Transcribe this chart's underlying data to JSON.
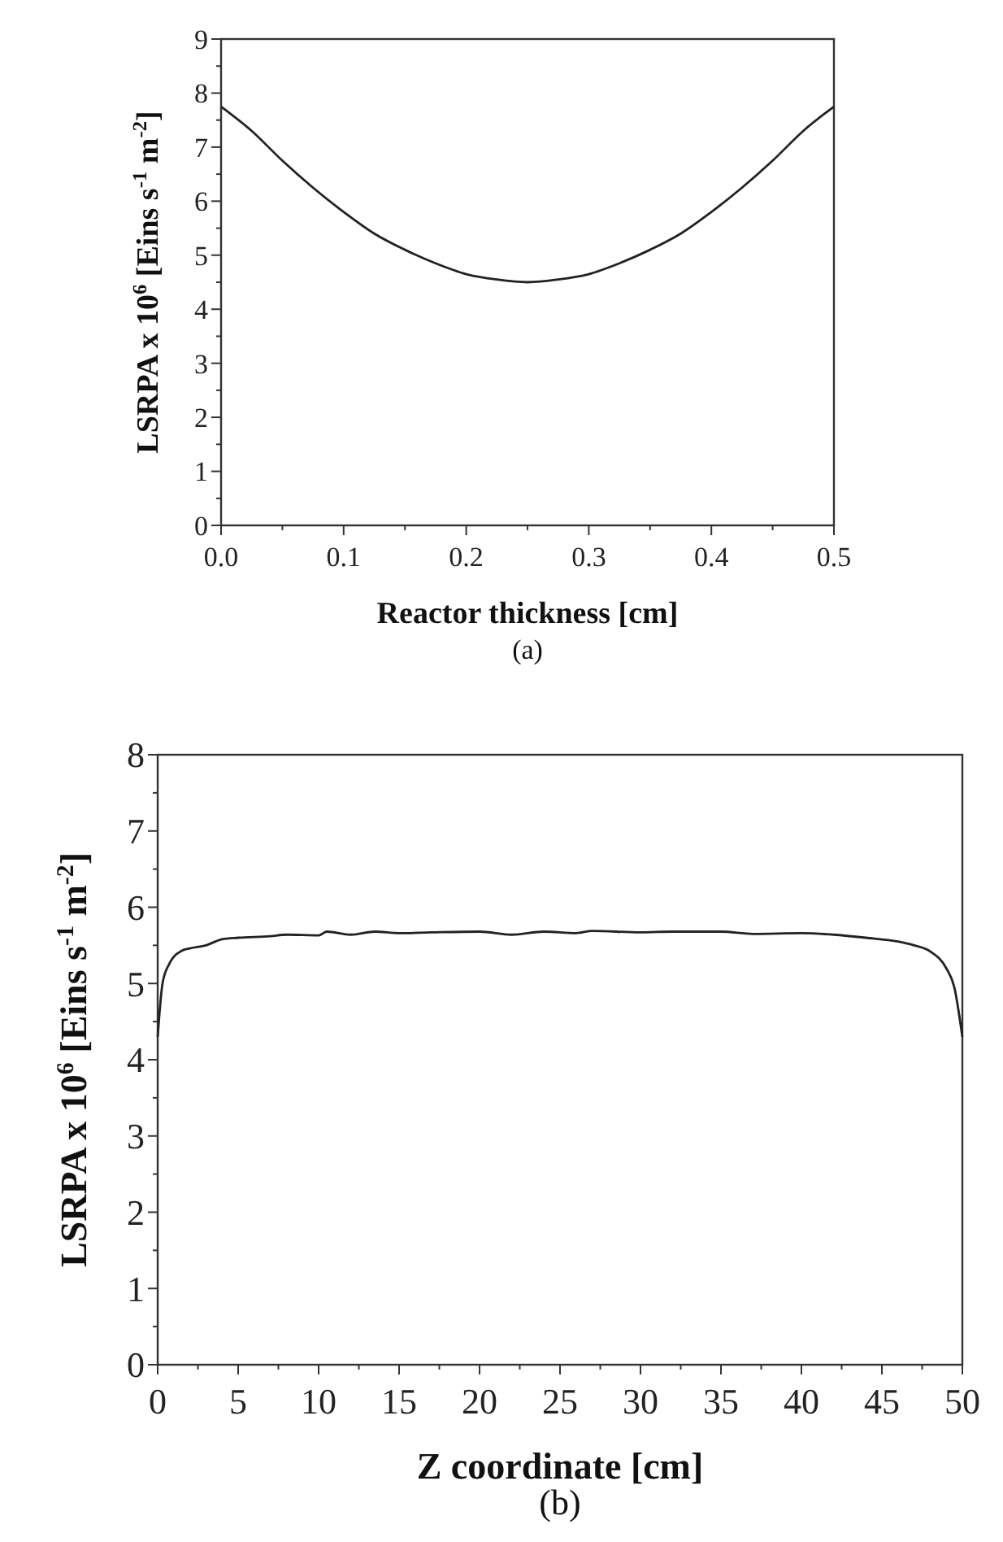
{
  "chart_data": [
    {
      "type": "line",
      "xlabel": "Reactor thickness [cm]",
      "ylabel": "LSRPA x 10$^{6}$ [Eins s$^{-1}$ m$^{-2}$]",
      "annotations": [
        "(a)"
      ],
      "x": [
        0,
        0.025,
        0.05,
        0.075,
        0.1,
        0.125,
        0.15,
        0.175,
        0.2,
        0.225,
        0.25,
        0.275,
        0.3,
        0.325,
        0.35,
        0.375,
        0.4,
        0.425,
        0.45,
        0.475,
        0.5
      ],
      "series": [
        {
          "color": "#222222",
          "values": [
            7.75,
            7.3,
            6.75,
            6.25,
            5.8,
            5.4,
            5.1,
            4.85,
            4.65,
            4.55,
            4.5,
            4.55,
            4.65,
            4.85,
            5.1,
            5.4,
            5.8,
            6.25,
            6.75,
            7.3,
            7.75
          ]
        }
      ],
      "xlim": [
        0,
        0.5
      ],
      "ylim": [
        0,
        9
      ],
      "xticks": [
        {
          "value": 0,
          "label": "0.0"
        },
        {
          "value": 0.05,
          "label": null
        },
        0.1,
        {
          "value": 0.15,
          "label": null
        },
        0.2,
        {
          "value": 0.25,
          "label": null
        },
        0.3,
        {
          "value": 0.35,
          "label": null
        },
        0.4,
        {
          "value": 0.45,
          "label": null
        },
        0.5
      ],
      "yticks": [
        0,
        {
          "value": 0.5,
          "label": null
        },
        1,
        {
          "value": 1.5,
          "label": null
        },
        2,
        {
          "value": 2.5,
          "label": null
        },
        3,
        {
          "value": 3.5,
          "label": null
        },
        4,
        {
          "value": 4.5,
          "label": null
        },
        5,
        {
          "value": 5.5,
          "label": null
        },
        6,
        {
          "value": 6.5,
          "label": null
        },
        7,
        {
          "value": 7.5,
          "label": null
        },
        8,
        {
          "value": 8.5,
          "label": null
        },
        9
      ],
      "grid": false
    },
    {
      "type": "line",
      "xlabel": "Z coordinate [cm]",
      "ylabel": "LSRPA x 10$^{6}$ [Eins s$^{-1}$ m$^{-2}$]",
      "annotations": [
        "(b)"
      ],
      "x": [
        0,
        0.3,
        0.7,
        1,
        1.5,
        2,
        3,
        4,
        5,
        7,
        8,
        10,
        10.5,
        12,
        13.5,
        15,
        17,
        20,
        22,
        24,
        26,
        27,
        30,
        32,
        35,
        37,
        40,
        42,
        44,
        46,
        47,
        48,
        49,
        49.5,
        50
      ],
      "series": [
        {
          "color": "#222222",
          "values": [
            4.3,
            5.0,
            5.25,
            5.35,
            5.43,
            5.46,
            5.5,
            5.58,
            5.6,
            5.62,
            5.64,
            5.63,
            5.68,
            5.64,
            5.68,
            5.66,
            5.67,
            5.68,
            5.64,
            5.68,
            5.66,
            5.69,
            5.67,
            5.68,
            5.68,
            5.65,
            5.66,
            5.64,
            5.6,
            5.55,
            5.5,
            5.42,
            5.2,
            4.95,
            4.3
          ]
        }
      ],
      "xlim": [
        0,
        50
      ],
      "ylim": [
        0,
        8
      ],
      "xticks": [
        0,
        {
          "value": 2.5,
          "label": null
        },
        5,
        {
          "value": 7.5,
          "label": null
        },
        10,
        {
          "value": 12.5,
          "label": null
        },
        15,
        {
          "value": 17.5,
          "label": null
        },
        20,
        {
          "value": 22.5,
          "label": null
        },
        25,
        {
          "value": 27.5,
          "label": null
        },
        30,
        {
          "value": 32.5,
          "label": null
        },
        35,
        {
          "value": 37.5,
          "label": null
        },
        40,
        {
          "value": 42.5,
          "label": null
        },
        45,
        {
          "value": 47.5,
          "label": null
        },
        50
      ],
      "yticks": [
        0,
        {
          "value": 0.5,
          "label": null
        },
        1,
        {
          "value": 1.5,
          "label": null
        },
        2,
        {
          "value": 2.5,
          "label": null
        },
        3,
        {
          "value": 3.5,
          "label": null
        },
        4,
        {
          "value": 4.5,
          "label": null
        },
        5,
        {
          "value": 5.5,
          "label": null
        },
        6,
        {
          "value": 6.5,
          "label": null
        },
        7,
        {
          "value": 7.5,
          "label": null
        },
        8
      ],
      "grid": false
    }
  ]
}
